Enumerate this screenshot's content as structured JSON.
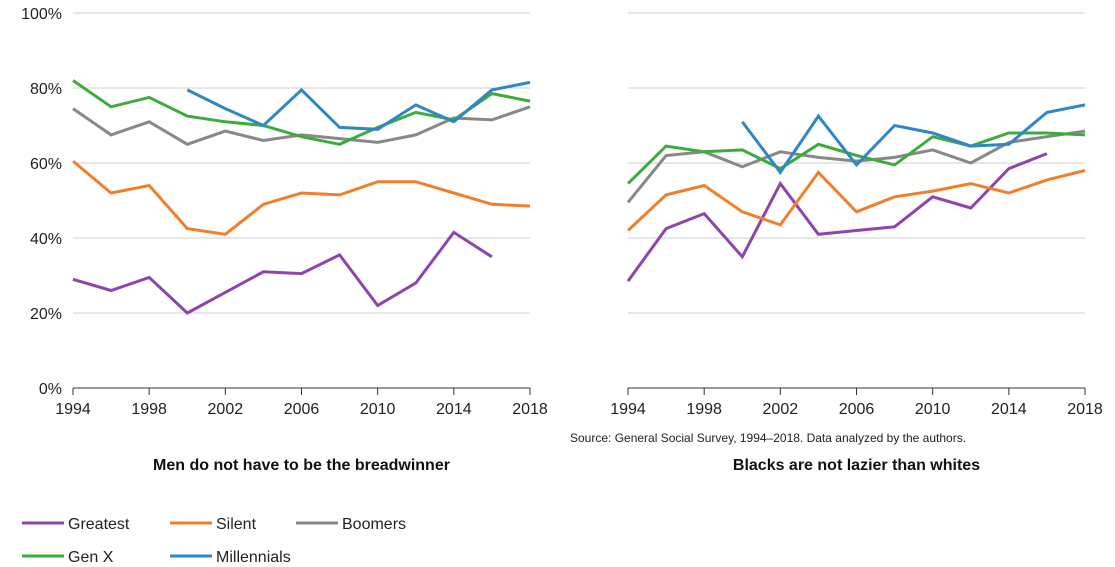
{
  "chart_data": [
    {
      "type": "line",
      "title": "Men do not have to be the breadwinner",
      "xlabel": "",
      "ylabel": "",
      "xlim": [
        1994,
        2018
      ],
      "ylim": [
        0,
        100
      ],
      "x_ticks": [
        1994,
        1998,
        2002,
        2006,
        2010,
        2014,
        2018
      ],
      "y_ticks": [
        0,
        20,
        40,
        60,
        80,
        100
      ],
      "y_tick_labels": [
        "0%",
        "20%",
        "40%",
        "60%",
        "80%",
        "100%"
      ],
      "grid": "horizontal",
      "series": [
        {
          "name": "Greatest",
          "x": [
            1994,
            1996,
            1998,
            2000,
            2002,
            2004,
            2006,
            2008,
            2010,
            2012,
            2014,
            2016
          ],
          "values": [
            29,
            26,
            29.5,
            20,
            25.5,
            31,
            30.5,
            35.5,
            22,
            28,
            41.5,
            35
          ]
        },
        {
          "name": "Silent",
          "x": [
            1994,
            1996,
            1998,
            2000,
            2002,
            2004,
            2006,
            2008,
            2010,
            2012,
            2014,
            2016,
            2018
          ],
          "values": [
            60.5,
            52,
            54,
            42.5,
            41,
            49,
            52,
            51.5,
            55,
            55,
            52,
            49,
            48.5
          ]
        },
        {
          "name": "Boomers",
          "x": [
            1994,
            1996,
            1998,
            2000,
            2002,
            2004,
            2006,
            2008,
            2010,
            2012,
            2014,
            2016,
            2018
          ],
          "values": [
            74.5,
            67.5,
            71,
            65,
            68.5,
            66,
            67.5,
            66.5,
            65.5,
            67.5,
            72,
            71.5,
            75
          ]
        },
        {
          "name": "Gen X",
          "x": [
            1994,
            1996,
            1998,
            2000,
            2002,
            2004,
            2006,
            2008,
            2010,
            2012,
            2014,
            2016,
            2018
          ],
          "values": [
            82,
            75,
            77.5,
            72.5,
            71,
            70,
            67,
            65,
            69.5,
            73.5,
            71.5,
            78.5,
            76.5
          ]
        },
        {
          "name": "Millennials",
          "x": [
            2000,
            2002,
            2004,
            2006,
            2008,
            2010,
            2012,
            2014,
            2016,
            2018
          ],
          "values": [
            79.5,
            74.5,
            70,
            79.5,
            69.5,
            69,
            75.5,
            71,
            79.5,
            81.5
          ]
        }
      ]
    },
    {
      "type": "line",
      "title": "Blacks are not lazier than whites",
      "xlabel": "",
      "ylabel": "",
      "xlim": [
        1994,
        2018
      ],
      "ylim": [
        0,
        100
      ],
      "x_ticks": [
        1994,
        1998,
        2002,
        2006,
        2010,
        2014,
        2018
      ],
      "grid": "horizontal",
      "series": [
        {
          "name": "Greatest",
          "x": [
            1994,
            1996,
            1998,
            2000,
            2002,
            2004,
            2006,
            2008,
            2010,
            2012,
            2014,
            2016
          ],
          "values": [
            28.5,
            42.5,
            46.5,
            35,
            54.5,
            41,
            42,
            43,
            51,
            48,
            58.5,
            62.5
          ]
        },
        {
          "name": "Silent",
          "x": [
            1994,
            1996,
            1998,
            2000,
            2002,
            2004,
            2006,
            2008,
            2010,
            2012,
            2014,
            2016,
            2018
          ],
          "values": [
            42,
            51.5,
            54,
            47,
            43.5,
            57.5,
            47,
            51,
            52.5,
            54.5,
            52,
            55.5,
            58
          ]
        },
        {
          "name": "Boomers",
          "x": [
            1994,
            1996,
            1998,
            2000,
            2002,
            2004,
            2006,
            2008,
            2010,
            2012,
            2014,
            2016,
            2018
          ],
          "values": [
            49.5,
            62,
            63,
            59,
            63,
            61.5,
            60.5,
            61.5,
            63.5,
            60,
            65.5,
            67,
            68.5
          ]
        },
        {
          "name": "Gen X",
          "x": [
            1994,
            1996,
            1998,
            2000,
            2002,
            2004,
            2006,
            2008,
            2010,
            2012,
            2014,
            2016,
            2018
          ],
          "values": [
            54.5,
            64.5,
            63,
            63.5,
            58.5,
            65,
            62,
            59.5,
            67,
            64.5,
            68,
            68,
            67.5
          ]
        },
        {
          "name": "Millennials",
          "x": [
            2000,
            2002,
            2004,
            2006,
            2008,
            2010,
            2012,
            2014,
            2016,
            2018
          ],
          "values": [
            71,
            57.5,
            72.5,
            59.5,
            70,
            68,
            64.5,
            65,
            73.5,
            75.5
          ]
        }
      ]
    }
  ],
  "legend": [
    {
      "name": "Greatest",
      "color": "#8e44ad"
    },
    {
      "name": "Silent",
      "color": "#f07f2b"
    },
    {
      "name": "Boomers",
      "color": "#888888"
    },
    {
      "name": "Gen X",
      "color": "#3dac3d"
    },
    {
      "name": "Millennials",
      "color": "#2f86c8"
    }
  ],
  "source": "Source: General Social Survey, 1994–2018. Data analyzed by the authors."
}
